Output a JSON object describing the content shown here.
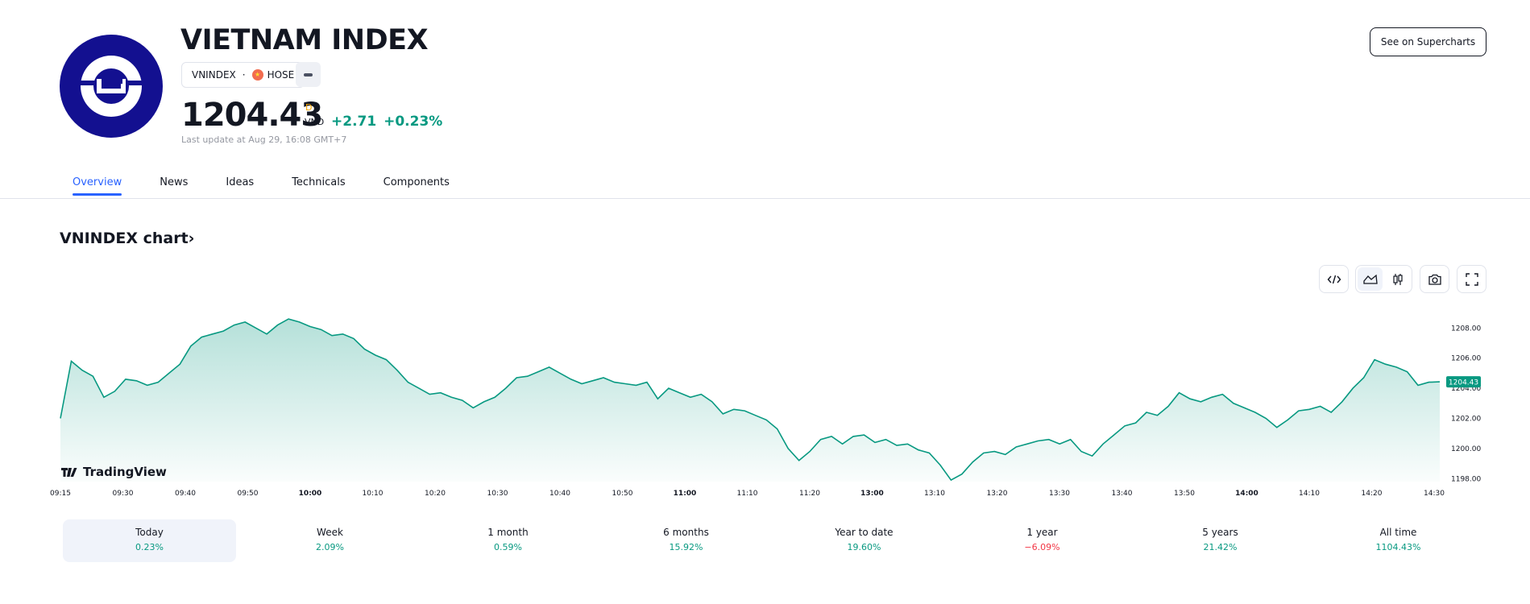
{
  "header": {
    "title": "VIETNAM INDEX",
    "symbol": "VNINDEX",
    "exchange": "HOSE",
    "price": "1204.43",
    "price_flag": "D",
    "currency": "VND",
    "change": "+2.71 +0.23%",
    "last_update": "Last update at Aug 29, 16:08 GMT+7",
    "supercharts_button": "See on Supercharts"
  },
  "tabs": [
    {
      "label": "Overview",
      "active": true
    },
    {
      "label": "News"
    },
    {
      "label": "Ideas"
    },
    {
      "label": "Technicals"
    },
    {
      "label": "Components"
    }
  ],
  "chart_section": {
    "title": "VNINDEX chart›",
    "watermark": "TradingView",
    "icons": [
      "embed-code-icon",
      "area-chart-icon",
      "candles-icon",
      "camera-icon",
      "fullscreen-icon"
    ]
  },
  "chart_data": {
    "type": "area",
    "line_color": "#089981",
    "last_value_label": "1204.43",
    "x_tick_labels": [
      "09:15",
      "09:30",
      "09:40",
      "09:50",
      "10:00",
      "10:10",
      "10:20",
      "10:30",
      "10:40",
      "10:50",
      "11:00",
      "11:10",
      "11:20",
      "13:00",
      "13:10",
      "13:20",
      "13:30",
      "13:40",
      "13:50",
      "14:00",
      "14:10",
      "14:20",
      "14:30"
    ],
    "y_tick_labels": [
      "1208.00",
      "1206.00",
      "1204.00",
      "1202.00",
      "1200.00",
      "1198.00"
    ],
    "ylim": [
      1197.8,
      1208.5
    ],
    "grid": false,
    "y": [
      1202.0,
      1205.8,
      1205.2,
      1204.8,
      1203.4,
      1203.8,
      1204.6,
      1204.5,
      1204.2,
      1204.4,
      1205.0,
      1205.6,
      1206.8,
      1207.4,
      1207.6,
      1207.8,
      1208.2,
      1208.4,
      1208.0,
      1207.6,
      1208.2,
      1208.6,
      1208.4,
      1208.1,
      1207.9,
      1207.5,
      1207.6,
      1207.3,
      1206.6,
      1206.2,
      1205.9,
      1205.2,
      1204.4,
      1204.0,
      1203.6,
      1203.7,
      1203.4,
      1203.2,
      1202.7,
      1203.1,
      1203.4,
      1204.0,
      1204.7,
      1204.8,
      1205.1,
      1205.4,
      1205.0,
      1204.6,
      1204.3,
      1204.5,
      1204.7,
      1204.4,
      1204.3,
      1204.2,
      1204.4,
      1203.3,
      1204.0,
      1203.7,
      1203.4,
      1203.6,
      1203.1,
      1202.3,
      1202.6,
      1202.5,
      1202.2,
      1201.9,
      1201.3,
      1200.0,
      1199.2,
      1199.8,
      1200.6,
      1200.8,
      1200.3,
      1200.8,
      1200.9,
      1200.4,
      1200.6,
      1200.2,
      1200.3,
      1199.9,
      1199.7,
      1198.9,
      1197.9,
      1198.3,
      1199.1,
      1199.7,
      1199.8,
      1199.6,
      1200.1,
      1200.3,
      1200.5,
      1200.6,
      1200.3,
      1200.6,
      1199.8,
      1199.5,
      1200.3,
      1200.9,
      1201.5,
      1201.7,
      1202.4,
      1202.2,
      1202.8,
      1203.7,
      1203.3,
      1203.1,
      1203.4,
      1203.6,
      1203.0,
      1202.7,
      1202.4,
      1202.0,
      1201.4,
      1201.9,
      1202.5,
      1202.6,
      1202.8,
      1202.4,
      1203.1,
      1204.0,
      1204.7,
      1205.9,
      1205.6,
      1205.4,
      1205.1,
      1204.2,
      1204.4,
      1204.43
    ]
  },
  "ranges": [
    {
      "label": "Today",
      "value": "0.23%",
      "trend": "pos",
      "active": true
    },
    {
      "label": "Week",
      "value": "2.09%",
      "trend": "pos"
    },
    {
      "label": "1 month",
      "value": "0.59%",
      "trend": "pos"
    },
    {
      "label": "6 months",
      "value": "15.92%",
      "trend": "pos"
    },
    {
      "label": "Year to date",
      "value": "19.60%",
      "trend": "pos"
    },
    {
      "label": "1 year",
      "value": "−6.09%",
      "trend": "neg"
    },
    {
      "label": "5 years",
      "value": "21.42%",
      "trend": "pos"
    },
    {
      "label": "All time",
      "value": "1104.43%",
      "trend": "pos"
    }
  ],
  "colors": {
    "accent": "#2962ff",
    "positive": "#089981",
    "negative": "#f23645",
    "logo_bg": "#131090",
    "exchange_flag": "#f26c4f",
    "price_flag": "#f7a600"
  }
}
